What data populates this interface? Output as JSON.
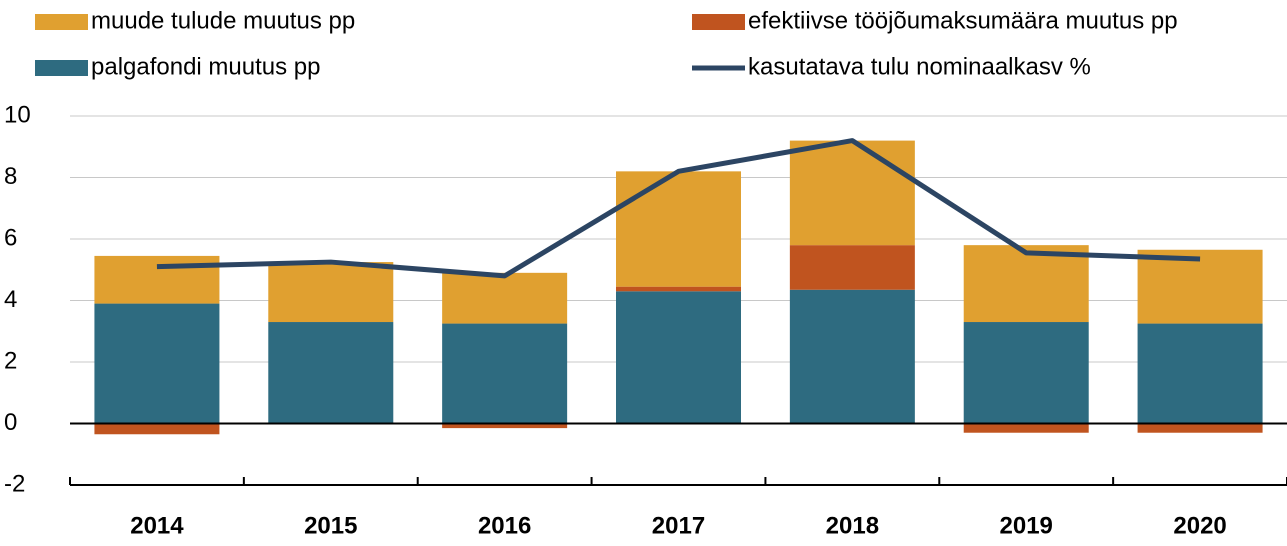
{
  "chart_data": {
    "type": "stacked_bar_line",
    "categories": [
      "2014",
      "2015",
      "2016",
      "2017",
      "2018",
      "2019",
      "2020"
    ],
    "series": [
      {
        "name": "palgafondi muutus pp",
        "color": "#2e6b80",
        "values": [
          3.9,
          3.3,
          3.25,
          4.3,
          4.35,
          3.3,
          3.25
        ]
      },
      {
        "name": "efektiivse tööjõumaksumäära muutus pp",
        "color": "#c0541f",
        "values": [
          -0.35,
          0,
          -0.15,
          0.15,
          1.45,
          -0.3,
          -0.3
        ]
      },
      {
        "name": "muude tulude muutus pp",
        "color": "#e0a030",
        "values": [
          1.55,
          1.95,
          1.65,
          3.75,
          3.4,
          2.5,
          2.4
        ]
      },
      {
        "name": "kasutatava tulu nominaalkasv %",
        "color": "#2c4563",
        "type": "line",
        "values": [
          5.1,
          5.25,
          4.8,
          8.2,
          9.2,
          5.55,
          5.35
        ]
      }
    ],
    "ylim": [
      -2,
      10
    ],
    "yticks": [
      -2,
      0,
      2,
      4,
      6,
      8,
      10
    ],
    "grid": true
  }
}
